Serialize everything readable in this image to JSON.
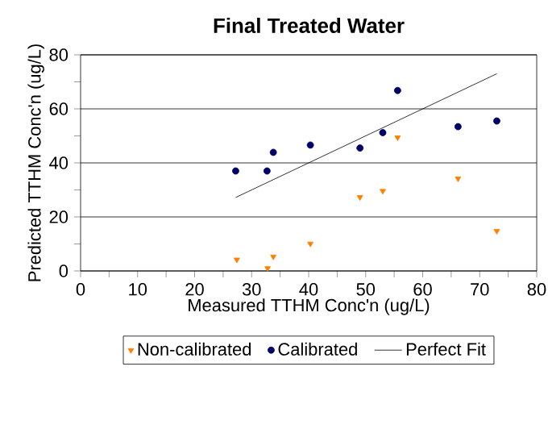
{
  "chart_data": {
    "type": "scatter",
    "title": "Final Treated Water",
    "xlabel": "Measured TTHM Conc'n (ug/L)",
    "ylabel": "Predicted TTHM Conc'n (ug/L)",
    "series": [
      {
        "name": "Non-calibrated",
        "marker": "triangle",
        "color": "#ff8000",
        "x": [
          27.4,
          32.8,
          33.8,
          40.3,
          49.0,
          53.0,
          55.6,
          66.2,
          73.0
        ],
        "values": [
          4.2,
          1.0,
          5.3,
          10.1,
          27.3,
          29.6,
          49.4,
          34.2,
          14.8
        ]
      },
      {
        "name": "Calibrated",
        "marker": "circle",
        "color": "#000066",
        "x": [
          27.2,
          32.7,
          33.8,
          40.3,
          49.0,
          53.0,
          55.6,
          66.2,
          73.0
        ],
        "values": [
          37.0,
          37.0,
          43.9,
          46.6,
          45.5,
          51.2,
          66.8,
          53.4,
          55.5
        ]
      },
      {
        "name": "Perfect Fit",
        "type": "line",
        "marker": "none",
        "color": "#000000",
        "x": [
          27.2,
          73.0
        ],
        "values": [
          27.2,
          73.0
        ]
      }
    ],
    "xlim": [
      0,
      80
    ],
    "ylim": [
      0,
      80
    ],
    "xticks": [
      0,
      10,
      20,
      30,
      40,
      50,
      60,
      70,
      80
    ],
    "yticks": [
      0,
      20,
      40,
      60,
      80
    ],
    "grid": "y",
    "legend": "bottom"
  }
}
